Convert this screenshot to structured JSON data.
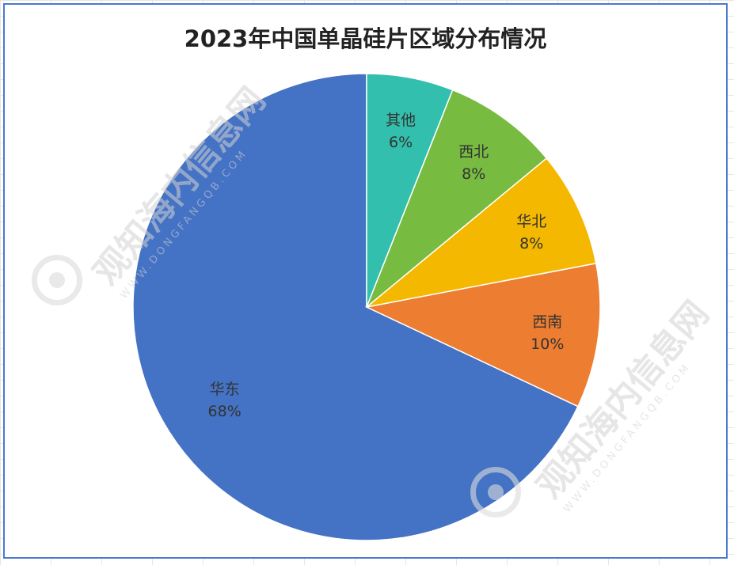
{
  "chart_data": {
    "type": "pie",
    "title": "2023年中国单晶硅片区域分布情况",
    "slices": [
      {
        "label": "华东",
        "value": 68,
        "display": "68%",
        "color": "#4472c4"
      },
      {
        "label": "西南",
        "value": 10,
        "display": "10%",
        "color": "#ed7d31"
      },
      {
        "label": "华北",
        "value": 8,
        "display": "8%",
        "color": "#f4b800"
      },
      {
        "label": "西北",
        "value": 8,
        "display": "8%",
        "color": "#77bb41"
      },
      {
        "label": "其他",
        "value": 6,
        "display": "6%",
        "color": "#33bfad"
      }
    ],
    "start": "12 o'clock",
    "direction": "counter-clockwise"
  },
  "watermark": {
    "text": "观知海内信息网",
    "site": "WWW.DONGFANGQB.COM"
  }
}
